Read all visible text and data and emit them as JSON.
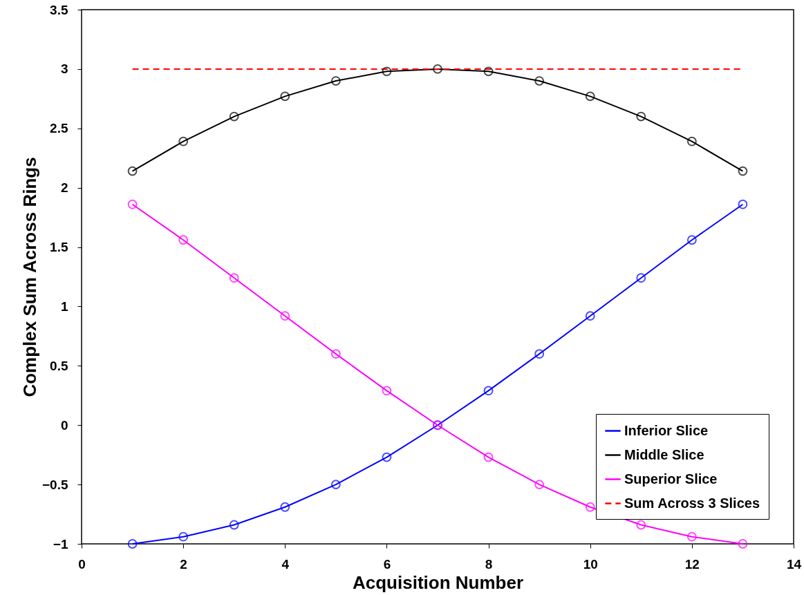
{
  "chart_data": {
    "type": "line",
    "xlabel": "Acquisition Number",
    "ylabel": "Complex Sum Across Rings",
    "x": [
      1,
      2,
      3,
      4,
      5,
      6,
      7,
      8,
      9,
      10,
      11,
      12,
      13
    ],
    "series": [
      {
        "name": "Inferior Slice",
        "color": "#0000ff",
        "marker": "circle",
        "line_style": "solid",
        "values": [
          -1.0,
          -0.94,
          -0.84,
          -0.69,
          -0.5,
          -0.27,
          0,
          0.29,
          0.6,
          0.92,
          1.24,
          1.56,
          1.86
        ]
      },
      {
        "name": "Middle Slice",
        "color": "#000000",
        "marker": "circle",
        "line_style": "solid",
        "values": [
          2.14,
          2.39,
          2.6,
          2.77,
          2.9,
          2.98,
          3.0,
          2.98,
          2.9,
          2.77,
          2.6,
          2.39,
          2.14
        ]
      },
      {
        "name": "Superior Slice",
        "color": "#ff00ff",
        "marker": "circle",
        "line_style": "solid",
        "values": [
          1.86,
          1.56,
          1.24,
          0.92,
          0.6,
          0.29,
          0,
          -0.27,
          -0.5,
          -0.69,
          -0.84,
          -0.94,
          -1.0
        ]
      },
      {
        "name": "Sum Across 3 Slices",
        "color": "#ff0000",
        "marker": "none",
        "line_style": "dashed",
        "x": [
          1,
          13
        ],
        "values": [
          3,
          3
        ]
      }
    ],
    "xlim": [
      0,
      14
    ],
    "xticks": [
      0,
      2,
      4,
      6,
      8,
      10,
      12,
      14
    ],
    "ylim": [
      -1,
      3.5
    ],
    "yticks": [
      -1,
      -0.5,
      0,
      0.5,
      1,
      1.5,
      2,
      2.5,
      3,
      3.5
    ],
    "grid": false,
    "legend": "bottom right"
  }
}
